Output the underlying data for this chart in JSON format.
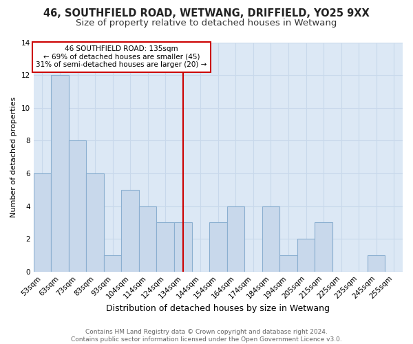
{
  "title1": "46, SOUTHFIELD ROAD, WETWANG, DRIFFIELD, YO25 9XX",
  "title2": "Size of property relative to detached houses in Wetwang",
  "xlabel": "Distribution of detached houses by size in Wetwang",
  "ylabel": "Number of detached properties",
  "footer1": "Contains HM Land Registry data © Crown copyright and database right 2024.",
  "footer2": "Contains public sector information licensed under the Open Government Licence v3.0.",
  "bin_labels": [
    "53sqm",
    "63sqm",
    "73sqm",
    "83sqm",
    "93sqm",
    "104sqm",
    "114sqm",
    "124sqm",
    "134sqm",
    "144sqm",
    "154sqm",
    "164sqm",
    "174sqm",
    "184sqm",
    "194sqm",
    "205sqm",
    "215sqm",
    "225sqm",
    "235sqm",
    "245sqm",
    "255sqm"
  ],
  "bar_values": [
    6,
    12,
    8,
    6,
    1,
    5,
    4,
    3,
    3,
    0,
    3,
    4,
    0,
    4,
    1,
    2,
    3,
    0,
    0,
    1,
    0
  ],
  "bar_color": "#c8d8eb",
  "bar_edge_color": "#8bafd0",
  "reference_line_x": 8,
  "reference_line_label": "46 SOUTHFIELD ROAD: 135sqm",
  "annotation_line1": "← 69% of detached houses are smaller (45)",
  "annotation_line2": "31% of semi-detached houses are larger (20) →",
  "annotation_box_edge_color": "#cc0000",
  "annotation_box_face_color": "#ffffff",
  "ref_line_color": "#cc0000",
  "ylim": [
    0,
    14
  ],
  "yticks": [
    0,
    2,
    4,
    6,
    8,
    10,
    12,
    14
  ],
  "grid_color": "#c8d8eb",
  "plot_bg_color": "#dce8f5",
  "background_color": "#ffffff",
  "title1_fontsize": 10.5,
  "title2_fontsize": 9.5,
  "xlabel_fontsize": 9,
  "ylabel_fontsize": 8,
  "tick_fontsize": 7.5,
  "footer_fontsize": 6.5
}
